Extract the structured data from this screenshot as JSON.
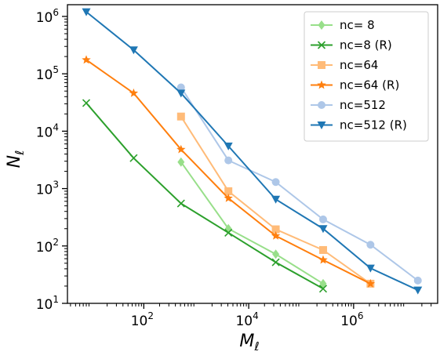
{
  "chart_data": {
    "type": "line",
    "xscale": "log",
    "yscale": "log",
    "xlabel": "M",
    "xlabel_sub": "ℓ",
    "ylabel": "N",
    "ylabel_sub": "ℓ",
    "xlim": [
      3.5,
      40000000
    ],
    "ylim": [
      10,
      1600000
    ],
    "x_ticks": [
      {
        "base": "10",
        "exp": "2",
        "value": 100
      },
      {
        "base": "10",
        "exp": "4",
        "value": 10000
      },
      {
        "base": "10",
        "exp": "6",
        "value": 1000000
      }
    ],
    "y_ticks": [
      {
        "base": "10",
        "exp": "1",
        "value": 10
      },
      {
        "base": "10",
        "exp": "2",
        "value": 100
      },
      {
        "base": "10",
        "exp": "3",
        "value": 1000
      },
      {
        "base": "10",
        "exp": "4",
        "value": 10000
      },
      {
        "base": "10",
        "exp": "5",
        "value": 100000
      },
      {
        "base": "10",
        "exp": "6",
        "value": 1000000
      }
    ],
    "legend_position": "top-right",
    "series": [
      {
        "name": "nc= 8",
        "color": "#98df8a",
        "marker": "diamond",
        "x": [
          512,
          4096,
          32768,
          262144
        ],
        "y": [
          2900,
          200,
          72,
          22
        ]
      },
      {
        "name": "nc=8 (R)",
        "color": "#2ca02c",
        "marker": "x",
        "x": [
          8,
          64,
          512,
          4096,
          32768,
          262144
        ],
        "y": [
          31000,
          3400,
          550,
          170,
          52,
          18
        ]
      },
      {
        "name": "nc=64",
        "color": "#ffbb78",
        "marker": "square",
        "x": [
          512,
          4096,
          32768,
          262144,
          2097152
        ],
        "y": [
          18000,
          900,
          195,
          85,
          22
        ]
      },
      {
        "name": "nc=64 (R)",
        "color": "#ff7f0e",
        "marker": "star",
        "x": [
          8,
          64,
          512,
          4096,
          32768,
          262144,
          2097152
        ],
        "y": [
          175000,
          46000,
          4800,
          680,
          150,
          57,
          22
        ]
      },
      {
        "name": "nc=512",
        "color": "#aec7e8",
        "marker": "circle",
        "x": [
          512,
          4096,
          32768,
          262144,
          2097152,
          16777216
        ],
        "y": [
          58000,
          3100,
          1300,
          290,
          105,
          25
        ]
      },
      {
        "name": "nc=512 (R)",
        "color": "#1f77b4",
        "marker": "triangle-down",
        "x": [
          8,
          64,
          512,
          4096,
          32768,
          262144,
          2097152,
          16777216
        ],
        "y": [
          1200000,
          260000,
          46000,
          5500,
          650,
          200,
          41,
          17
        ]
      }
    ]
  }
}
